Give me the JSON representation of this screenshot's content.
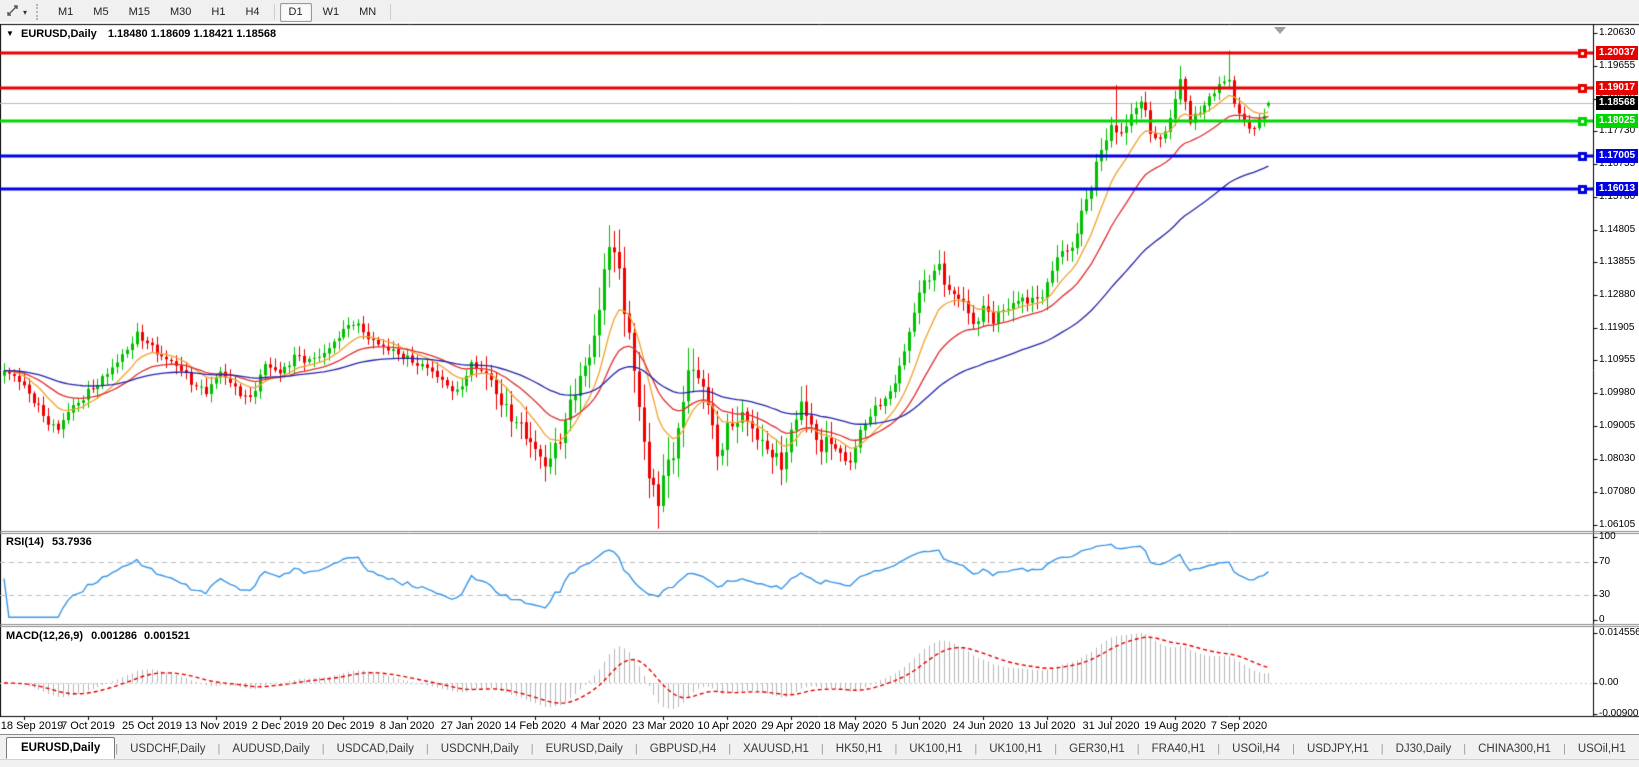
{
  "toolbar": {
    "tool_icon": "crosshair-tool",
    "dropdown_icon": "caret-down",
    "timeframes": [
      "M1",
      "M5",
      "M15",
      "M30",
      "H1",
      "H4",
      "D1",
      "W1",
      "MN"
    ],
    "active_timeframe": "D1"
  },
  "chart": {
    "title_symbol": "EURUSD,Daily",
    "ohlc_text": "1.18480 1.18609 1.18421 1.18568",
    "current_price": "1.18568",
    "price_axis_ticks": [
      "1.20630",
      "1.19655",
      "1.18680",
      "1.17730",
      "1.16755",
      "1.15780",
      "1.14805",
      "1.13855",
      "1.12880",
      "1.11905",
      "1.10955",
      "1.09980",
      "1.09005",
      "1.08030",
      "1.07080",
      "1.06105"
    ],
    "levels": [
      {
        "value": "1.20037",
        "color": "#e60000"
      },
      {
        "value": "1.19017",
        "color": "#e60000"
      },
      {
        "value": "1.18025",
        "color": "#00d500"
      },
      {
        "value": "1.17005",
        "color": "#0000e0"
      },
      {
        "value": "1.16013",
        "color": "#0000e0"
      }
    ],
    "date_axis": [
      "18 Sep 2019",
      "7 Oct 2019",
      "25 Oct 2019",
      "13 Nov 2019",
      "2 Dec 2019",
      "20 Dec 2019",
      "8 Jan 2020",
      "27 Jan 2020",
      "14 Feb 2020",
      "4 Mar 2020",
      "23 Mar 2020",
      "10 Apr 2020",
      "29 Apr 2020",
      "18 May 2020",
      "5 Jun 2020",
      "24 Jun 2020",
      "13 Jul 2020",
      "31 Jul 2020",
      "19 Aug 2020",
      "7 Sep 2020"
    ]
  },
  "rsi": {
    "label": "RSI(14)",
    "value": "53.7936",
    "axis": [
      "100",
      "70",
      "30",
      "0"
    ],
    "upper_level": 70,
    "lower_level": 30,
    "line_color": "#3a97e8"
  },
  "macd": {
    "label": "MACD(12,26,9)",
    "value_main": "0.001286",
    "value_signal": "0.001521",
    "axis": [
      "0.014556",
      "0.00",
      "-0.009001"
    ],
    "histogram_color": "#b8b8b8",
    "signal_color": "#e60000"
  },
  "tabs": {
    "items": [
      "EURUSD,Daily",
      "USDCHF,Daily",
      "AUDUSD,Daily",
      "USDCAD,Daily",
      "USDCNH,Daily",
      "EURUSD,Daily",
      "GBPUSD,H4",
      "XAUUSD,H1",
      "HK50,H1",
      "UK100,H1",
      "UK100,H1",
      "GER30,H1",
      "FRA40,H1",
      "USOil,H4",
      "USDJPY,H1",
      "DJ30,Daily",
      "CHINA300,H1",
      "USOil,H1"
    ],
    "active_index": 0,
    "scroll_left": "◂",
    "scroll_right": "▸"
  },
  "chart_data": {
    "type": "candlestick",
    "symbol": "EURUSD",
    "timeframe": "Daily",
    "candle_count": 258,
    "x_label_every": 13,
    "y_axis_top": 1.2063,
    "y_axis_bottom": 1.06105,
    "last_candle": {
      "open": 1.1848,
      "high": 1.18609,
      "low": 1.18421,
      "close": 1.18568
    },
    "current_price": 1.18568,
    "horizontal_levels": [
      1.20037,
      1.19017,
      1.18025,
      1.17005,
      1.16013
    ],
    "level_colors": [
      "#e60000",
      "#e60000",
      "#00d500",
      "#0000e0",
      "#0000e0"
    ],
    "bull_color": "#00c100",
    "bear_color": "#ee0000",
    "moving_averages": [
      {
        "period": 10,
        "color": "#f2a32e"
      },
      {
        "period": 22,
        "color": "#e03030"
      },
      {
        "period": 55,
        "color": "#2525aa"
      }
    ],
    "rsi_period": 14,
    "rsi_last": 53.7936,
    "macd_params": [
      12,
      26,
      9
    ],
    "macd_last": 0.001286,
    "macd_signal_last": 0.001521,
    "macd_axis_max": 0.014556,
    "macd_axis_min": -0.009001,
    "waypoints": [
      [
        0,
        1.1058
      ],
      [
        3,
        1.104
      ],
      [
        6,
        1.0982
      ],
      [
        9,
        1.0905
      ],
      [
        11,
        1.089
      ],
      [
        13,
        1.0952
      ],
      [
        16,
        1.0985
      ],
      [
        19,
        1.1022
      ],
      [
        22,
        1.108
      ],
      [
        25,
        1.1128
      ],
      [
        27,
        1.1165
      ],
      [
        29,
        1.1148
      ],
      [
        32,
        1.1112
      ],
      [
        35,
        1.1078
      ],
      [
        38,
        1.1032
      ],
      [
        41,
        1.1008
      ],
      [
        44,
        1.1058
      ],
      [
        47,
        1.1012
      ],
      [
        50,
        1.0985
      ],
      [
        53,
        1.1078
      ],
      [
        56,
        1.1058
      ],
      [
        59,
        1.1112
      ],
      [
        62,
        1.1088
      ],
      [
        65,
        1.1118
      ],
      [
        68,
        1.1172
      ],
      [
        71,
        1.1205
      ],
      [
        74,
        1.1165
      ],
      [
        77,
        1.114
      ],
      [
        80,
        1.1108
      ],
      [
        83,
        1.1095
      ],
      [
        86,
        1.1078
      ],
      [
        89,
        1.1028
      ],
      [
        92,
        1.1002
      ],
      [
        95,
        1.1085
      ],
      [
        98,
        1.1048
      ],
      [
        101,
        1.0978
      ],
      [
        104,
        1.0918
      ],
      [
        107,
        1.0842
      ],
      [
        110,
        1.0795
      ],
      [
        113,
        1.0868
      ],
      [
        116,
        1.1
      ],
      [
        119,
        1.1118
      ],
      [
        121,
        1.1255
      ],
      [
        123,
        1.1445
      ],
      [
        125,
        1.134
      ],
      [
        127,
        1.1168
      ],
      [
        129,
        1.098
      ],
      [
        131,
        1.0745
      ],
      [
        133,
        1.0672
      ],
      [
        135,
        1.079
      ],
      [
        137,
        1.0888
      ],
      [
        139,
        1.1085
      ],
      [
        141,
        1.1032
      ],
      [
        143,
        1.0968
      ],
      [
        145,
        1.0815
      ],
      [
        147,
        1.0902
      ],
      [
        150,
        1.0925
      ],
      [
        153,
        1.0868
      ],
      [
        156,
        1.0832
      ],
      [
        158,
        1.0778
      ],
      [
        160,
        1.0868
      ],
      [
        162,
        1.0975
      ],
      [
        164,
        1.0908
      ],
      [
        166,
        1.0838
      ],
      [
        168,
        1.0852
      ],
      [
        170,
        1.0812
      ],
      [
        172,
        1.0798
      ],
      [
        174,
        1.0892
      ],
      [
        177,
        1.0948
      ],
      [
        180,
        1.0998
      ],
      [
        183,
        1.1125
      ],
      [
        186,
        1.129
      ],
      [
        188,
        1.1342
      ],
      [
        190,
        1.1378
      ],
      [
        192,
        1.1302
      ],
      [
        195,
        1.1262
      ],
      [
        197,
        1.1195
      ],
      [
        199,
        1.1258
      ],
      [
        201,
        1.1222
      ],
      [
        204,
        1.1245
      ],
      [
        207,
        1.1282
      ],
      [
        210,
        1.1278
      ],
      [
        212,
        1.1308
      ],
      [
        214,
        1.1402
      ],
      [
        217,
        1.1435
      ],
      [
        219,
        1.1532
      ],
      [
        221,
        1.1605
      ],
      [
        223,
        1.1718
      ],
      [
        225,
        1.1788
      ],
      [
        227,
        1.1772
      ],
      [
        229,
        1.1812
      ],
      [
        231,
        1.1862
      ],
      [
        233,
        1.1772
      ],
      [
        235,
        1.1748
      ],
      [
        237,
        1.1812
      ],
      [
        239,
        1.1918
      ],
      [
        241,
        1.1798
      ],
      [
        243,
        1.1838
      ],
      [
        245,
        1.1872
      ],
      [
        247,
        1.1908
      ],
      [
        249,
        1.192
      ],
      [
        250,
        1.1855
      ],
      [
        252,
        1.1802
      ],
      [
        254,
        1.1782
      ],
      [
        256,
        1.1822
      ],
      [
        257,
        1.1857
      ]
    ],
    "wick_overrides": {
      "11": {
        "low": 1.0879
      },
      "123": {
        "high": 1.1495
      },
      "133": {
        "low": 1.0636
      },
      "158": {
        "low": 1.0727
      },
      "190": {
        "high": 1.1422
      },
      "226": {
        "high": 1.1909
      },
      "239": {
        "high": 1.1966
      },
      "249": {
        "high": 1.2011
      }
    }
  }
}
